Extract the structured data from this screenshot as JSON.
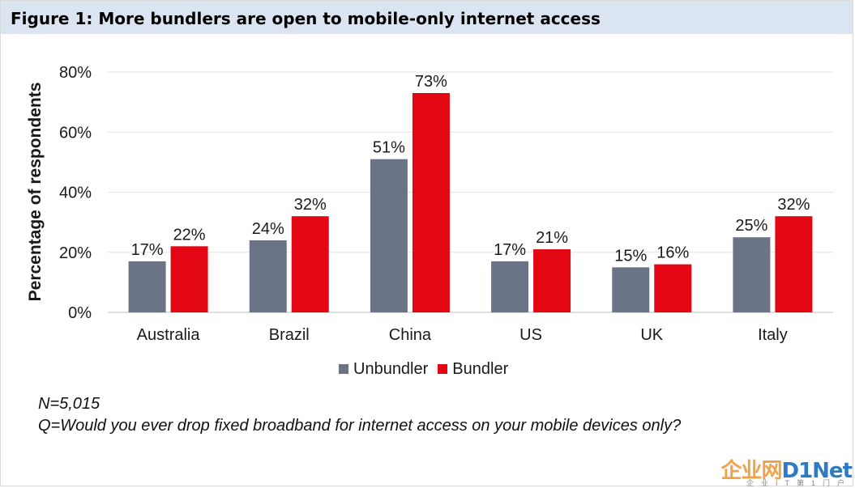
{
  "header": {
    "title": "Figure 1: More bundlers are open to mobile-only internet access"
  },
  "chart_data": {
    "type": "bar",
    "title": "",
    "xlabel": "",
    "ylabel": "Percentage of respondents",
    "ylim": [
      0,
      80
    ],
    "yticks": [
      0,
      20,
      40,
      60,
      80
    ],
    "ytick_labels": [
      "0%",
      "20%",
      "40%",
      "60%",
      "80%"
    ],
    "grid": true,
    "legend_position": "bottom",
    "categories": [
      "Australia",
      "Brazil",
      "China",
      "US",
      "UK",
      "Italy"
    ],
    "series": [
      {
        "name": "Unbundler",
        "color": "#6b7487",
        "values": [
          17,
          24,
          51,
          17,
          15,
          25
        ],
        "labels": [
          "17%",
          "24%",
          "51%",
          "17%",
          "15%",
          "25%"
        ]
      },
      {
        "name": "Bundler",
        "color": "#e30613",
        "values": [
          22,
          32,
          73,
          21,
          16,
          32
        ],
        "labels": [
          "22%",
          "32%",
          "73%",
          "21%",
          "16%",
          "32%"
        ]
      }
    ]
  },
  "notes": {
    "n": "N=5,015",
    "q": "Q=Would you ever drop fixed broadband for internet access on your mobile devices only?"
  },
  "watermark": {
    "logo_part1": "企业网",
    "logo_part2": "D1Net",
    "subtitle": "企业IT第1门户"
  }
}
